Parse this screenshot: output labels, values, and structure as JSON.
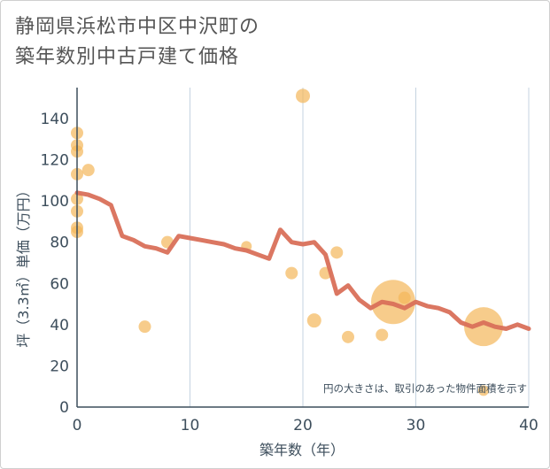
{
  "title_lines": [
    "静岡県浜松市中区中沢町の",
    "築年数別中古戸建て価格"
  ],
  "colors": {
    "line": "#d9705a",
    "bubble": "#f4b65a",
    "grid": "#c5d3e0",
    "axis": "#3d4e5c"
  },
  "chart_data": {
    "type": "scatter",
    "xlabel": "築年数（年）",
    "ylabel": "坪（3.3㎡）単価（万円）",
    "xlim": [
      0,
      40
    ],
    "ylim": [
      0,
      155
    ],
    "x_ticks": [
      0,
      10,
      20,
      30,
      40
    ],
    "y_ticks": [
      0,
      20,
      40,
      60,
      80,
      100,
      120,
      140
    ],
    "grid": "vertical",
    "note": "円の大きさは、取引のあった物件面積を示す",
    "points": [
      {
        "x": 0,
        "y": 133,
        "r": 7
      },
      {
        "x": 0,
        "y": 127,
        "r": 7
      },
      {
        "x": 0,
        "y": 124,
        "r": 7
      },
      {
        "x": 0,
        "y": 113,
        "r": 7
      },
      {
        "x": 0,
        "y": 101,
        "r": 7
      },
      {
        "x": 0,
        "y": 95,
        "r": 7
      },
      {
        "x": 0,
        "y": 87,
        "r": 7
      },
      {
        "x": 0,
        "y": 85,
        "r": 7
      },
      {
        "x": 1,
        "y": 115,
        "r": 7
      },
      {
        "x": 6,
        "y": 39,
        "r": 7
      },
      {
        "x": 8,
        "y": 80,
        "r": 7
      },
      {
        "x": 15,
        "y": 78,
        "r": 6
      },
      {
        "x": 19,
        "y": 65,
        "r": 7
      },
      {
        "x": 20,
        "y": 151,
        "r": 8
      },
      {
        "x": 21,
        "y": 42,
        "r": 8
      },
      {
        "x": 22,
        "y": 65,
        "r": 7
      },
      {
        "x": 23,
        "y": 75,
        "r": 7
      },
      {
        "x": 24,
        "y": 34,
        "r": 7
      },
      {
        "x": 27,
        "y": 35,
        "r": 7
      },
      {
        "x": 28,
        "y": 51,
        "r": 25
      },
      {
        "x": 29,
        "y": 53,
        "r": 7
      },
      {
        "x": 36,
        "y": 39,
        "r": 22
      },
      {
        "x": 36,
        "y": 8,
        "r": 6
      }
    ],
    "series": [
      {
        "x": [
          0,
          1,
          2,
          3,
          4,
          5,
          6,
          7,
          8,
          9,
          10,
          11,
          12,
          13,
          14,
          15,
          16,
          17,
          18,
          19,
          20,
          21,
          22,
          23,
          24,
          25,
          26,
          27,
          28,
          29,
          30,
          31,
          32,
          33,
          34,
          35,
          36,
          37,
          38,
          39,
          40
        ],
        "values": [
          104,
          103,
          101,
          98,
          83,
          81,
          78,
          77,
          75,
          83,
          82,
          81,
          80,
          79,
          77,
          76,
          74,
          72,
          86,
          80,
          79,
          80,
          74,
          55,
          59,
          52,
          48,
          51,
          50,
          48,
          51,
          49,
          48,
          46,
          41,
          39,
          41,
          39,
          38,
          40,
          38
        ]
      }
    ]
  }
}
